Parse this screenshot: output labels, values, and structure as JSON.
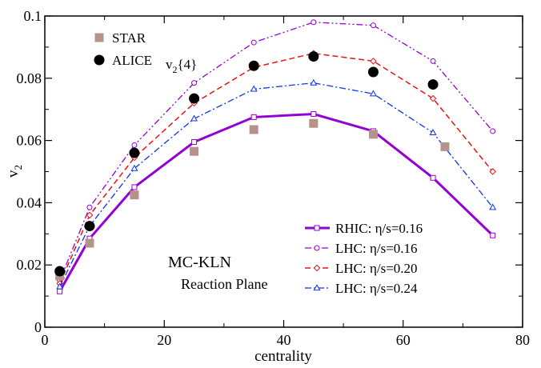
{
  "chart_data": {
    "type": "line",
    "xlabel": "centrality",
    "ylabel": "v",
    "ylabel_sub": "2",
    "xlim": [
      0,
      80
    ],
    "ylim": [
      0,
      0.1
    ],
    "x_ticks": [
      0,
      20,
      40,
      60,
      80
    ],
    "x_tick_labels": [
      "0",
      "20",
      "40",
      "60",
      "80"
    ],
    "y_ticks": [
      0,
      0.02,
      0.04,
      0.06,
      0.08,
      0.1
    ],
    "y_tick_labels": [
      "0",
      "0.02",
      "0.04",
      "0.06",
      "0.08",
      "0.1"
    ],
    "grid": false,
    "annotations": {
      "v24_main": "v",
      "v24_sub": "2",
      "v24_rest": "{4}",
      "model": "MC-KLN",
      "plane": "Reaction Plane"
    },
    "point_legend": [
      {
        "label": "STAR",
        "marker": "square",
        "color": "#b5928a"
      },
      {
        "label": "ALICE",
        "marker": "circle",
        "color": "#000000"
      }
    ],
    "series": [
      {
        "name": "RHIC: η/s=0.16",
        "color": "#9400d3",
        "dash": "solid",
        "marker": "square-open",
        "width": 3,
        "x": [
          2.5,
          7.5,
          15,
          25,
          35,
          45,
          55,
          65,
          75
        ],
        "y": [
          0.0115,
          0.0285,
          0.045,
          0.0595,
          0.0675,
          0.0685,
          0.063,
          0.048,
          0.0295
        ]
      },
      {
        "name": "LHC: η/s=0.16",
        "color": "#9400d3",
        "dash": "dash-dot-dot",
        "marker": "circle-open",
        "width": 1.3,
        "x": [
          2.5,
          7.5,
          15,
          25,
          35,
          45,
          55,
          65,
          75
        ],
        "y": [
          0.015,
          0.0385,
          0.0585,
          0.0785,
          0.0915,
          0.098,
          0.097,
          0.0855,
          0.063
        ]
      },
      {
        "name": "LHC: η/s=0.20",
        "color": "#ee1111",
        "dash": "dash",
        "marker": "diamond-open",
        "width": 1.5,
        "x": [
          2.5,
          7.5,
          15,
          25,
          35,
          45,
          55,
          65,
          75
        ],
        "y": [
          0.014,
          0.036,
          0.0545,
          0.072,
          0.0835,
          0.088,
          0.0855,
          0.0735,
          0.05
        ]
      },
      {
        "name": "LHC: η/s=0.24",
        "color": "#1133ee",
        "dash": "dash-dot",
        "marker": "triangle-open",
        "width": 1.3,
        "x": [
          2.5,
          7.5,
          15,
          25,
          35,
          45,
          55,
          65,
          75
        ],
        "y": [
          0.013,
          0.0325,
          0.051,
          0.067,
          0.0765,
          0.0785,
          0.075,
          0.0625,
          0.0385
        ]
      }
    ],
    "points": [
      {
        "name": "STAR",
        "marker": "square",
        "color": "#b5928a",
        "x": [
          2.5,
          7.5,
          15,
          25,
          35,
          45,
          55,
          67
        ],
        "y": [
          0.0165,
          0.027,
          0.0425,
          0.0565,
          0.0635,
          0.0655,
          0.062,
          0.058
        ]
      },
      {
        "name": "ALICE",
        "marker": "circle",
        "color": "#000000",
        "x": [
          2.5,
          7.5,
          15,
          25,
          35,
          45,
          55,
          65
        ],
        "y": [
          0.018,
          0.0325,
          0.056,
          0.0735,
          0.084,
          0.087,
          0.082,
          0.078
        ]
      }
    ]
  }
}
